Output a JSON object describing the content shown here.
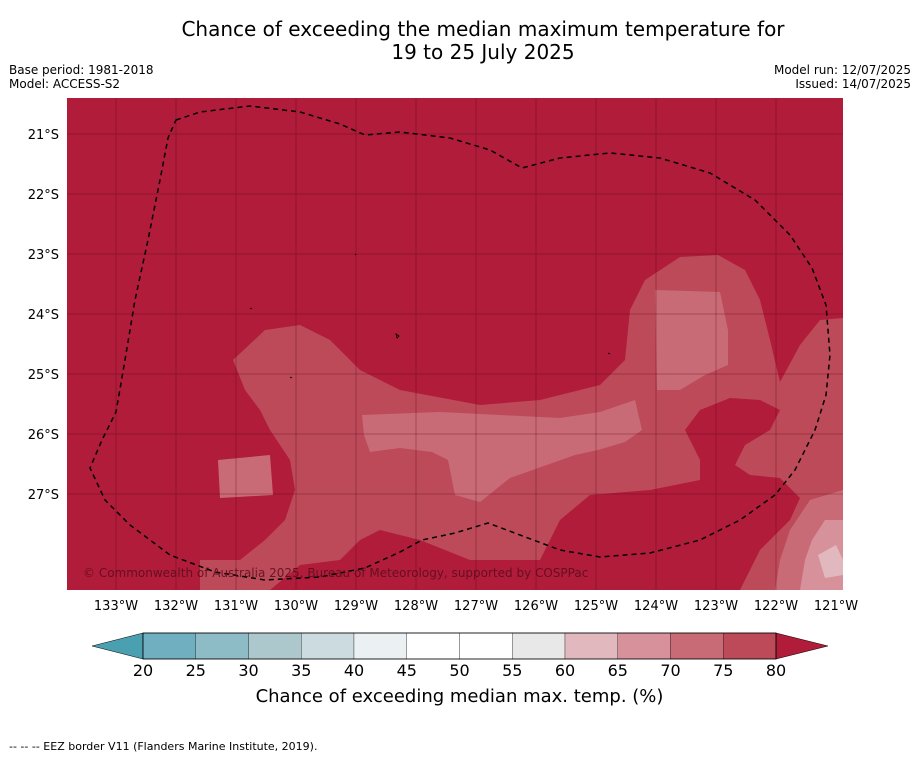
{
  "title_line1": "Chance of exceeding the median maximum temperature for",
  "title_line2": "19 to 25 July 2025",
  "meta_left": [
    "Base period: 1981-2018",
    "Model: ACCESS-S2"
  ],
  "meta_right": [
    "Model run: 12/07/2025",
    "Issued: 14/07/2025"
  ],
  "copyright": "© Commonwealth of Australia 2025, Bureau of Meteorology, supported by COSPPac",
  "lat_labels": [
    "21°S",
    "22°S",
    "23°S",
    "24°S",
    "25°S",
    "26°S",
    "27°S"
  ],
  "lon_labels": [
    "133°W",
    "132°W",
    "131°W",
    "130°W",
    "129°W",
    "128°W",
    "127°W",
    "126°W",
    "125°W",
    "124°W",
    "123°W",
    "122°W",
    "121°W"
  ],
  "colorbar": {
    "ticks": [
      "20",
      "25",
      "30",
      "35",
      "40",
      "45",
      "50",
      "55",
      "60",
      "65",
      "70",
      "75",
      "80"
    ],
    "colors": [
      "#6fafbf",
      "#8dbbc6",
      "#acc8cd",
      "#cbdbdf",
      "#ebf1f3",
      "#ffffff",
      "#ffffff",
      "#e8e8e8",
      "#e2b8bf",
      "#d6919a",
      "#c96b76",
      "#bd4a58"
    ],
    "under_color": "#4aa0b0",
    "over_color": "#b01c3a",
    "title": "Chance of exceeding median max. temp. (%)"
  },
  "footer": "--  --  -- EEZ border V11 (Flanders Marine Institute, 2019)."
}
